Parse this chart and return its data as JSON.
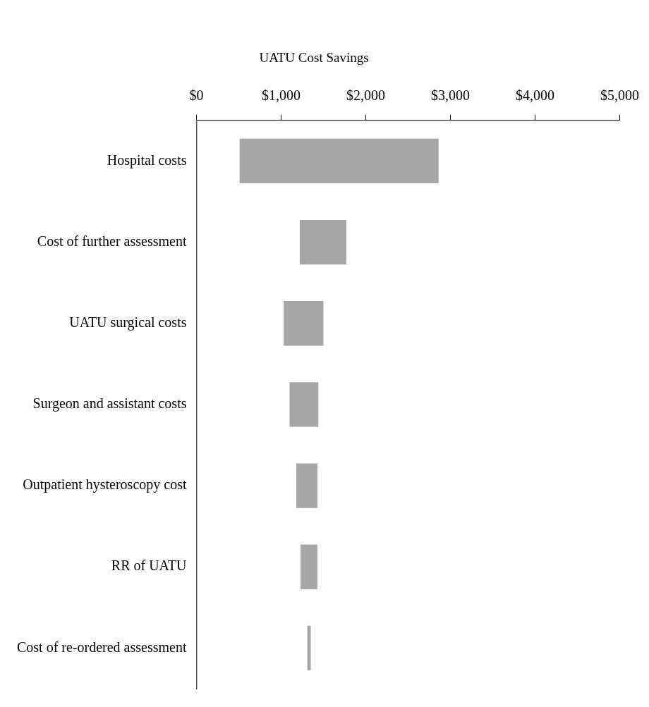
{
  "chart_data": {
    "type": "bar",
    "orientation": "horizontal",
    "title": "UATU Cost Savings",
    "categories": [
      "Hospital costs",
      "Cost of further assessment",
      "UATU surgical costs",
      "Surgeon and assistant costs",
      "Outpatient hysteroscopy cost",
      "RR of UATU",
      "Cost of re-ordered assessment"
    ],
    "base": [
      510,
      1220,
      1030,
      1100,
      1180,
      1230,
      1310
    ],
    "values": [
      2350,
      550,
      470,
      340,
      250,
      200,
      40
    ],
    "color": "#a6a6a6",
    "xlim": [
      0,
      5000
    ],
    "xticks": [
      {
        "value": 0,
        "label": "$0"
      },
      {
        "value": 1000,
        "label": "$1,000"
      },
      {
        "value": 2000,
        "label": "$2,000"
      },
      {
        "value": 3000,
        "label": "$3,000"
      },
      {
        "value": 4000,
        "label": "$4,000"
      },
      {
        "value": 5000,
        "label": "$5,000"
      }
    ],
    "grid": false,
    "legend": false
  }
}
